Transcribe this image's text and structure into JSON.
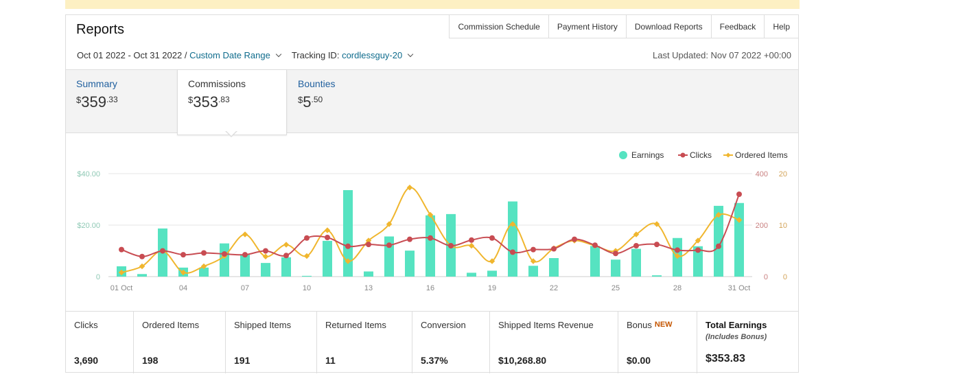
{
  "header": {
    "title": "Reports",
    "links": [
      "Commission Schedule",
      "Payment History",
      "Download Reports",
      "Feedback",
      "Help"
    ]
  },
  "filters": {
    "date_range": "Oct 01 2022 - Oct 31 2022 /",
    "date_range_link": "Custom Date Range",
    "tracking_label": "Tracking ID:",
    "tracking_id": "cordlessguy-20",
    "last_updated": "Last Updated: Nov 07 2022 +00:00"
  },
  "tabs": [
    {
      "label": "Summary",
      "currency": "$",
      "whole": "359",
      "cents": ".33"
    },
    {
      "label": "Commissions",
      "currency": "$",
      "whole": "353",
      "cents": ".83"
    },
    {
      "label": "Bounties",
      "currency": "$",
      "whole": "5",
      "cents": ".50"
    }
  ],
  "chart_data": {
    "type": "bar+line",
    "legend": [
      "Earnings",
      "Clicks",
      "Ordered Items"
    ],
    "legend_position": "top-right",
    "x": [
      "01 Oct",
      "02",
      "03",
      "04",
      "05",
      "06",
      "07",
      "08",
      "09",
      "10",
      "11",
      "12",
      "13",
      "14",
      "15",
      "16",
      "17",
      "18",
      "19",
      "20",
      "21",
      "22",
      "23",
      "24",
      "25",
      "26",
      "27",
      "28",
      "29",
      "30",
      "31 Oct"
    ],
    "x_tick_labels": [
      "01 Oct",
      "04",
      "07",
      "10",
      "13",
      "16",
      "19",
      "22",
      "25",
      "28",
      "31 Oct"
    ],
    "y_left_ticks": [
      "$40.00",
      "$20.00",
      "0"
    ],
    "y_mid_ticks": [
      "400",
      "200",
      "0"
    ],
    "y_right_ticks": [
      "20",
      "10",
      "0"
    ],
    "ylim_earnings": [
      0,
      40
    ],
    "ylim_clicks": [
      0,
      400
    ],
    "ylim_ordered": [
      0,
      20
    ],
    "colors": {
      "earnings": "#56e3c1",
      "clicks": "#c84c52",
      "ordered": "#f0b62e"
    },
    "series": [
      {
        "name": "Earnings",
        "values": [
          4.0,
          1.0,
          18.7,
          3.5,
          3.5,
          12.9,
          8.5,
          5.3,
          7.5,
          0.3,
          13.9,
          33.6,
          2.0,
          15.6,
          10.1,
          23.8,
          24.3,
          1.5,
          2.3,
          29.2,
          4.2,
          7.2,
          0,
          11.9,
          6.6,
          10.8,
          0.5,
          15.0,
          11.8,
          27.5,
          28.6
        ]
      },
      {
        "name": "Clicks",
        "values": [
          105,
          78,
          100,
          85,
          92,
          88,
          85,
          100,
          82,
          150,
          152,
          118,
          125,
          122,
          145,
          150,
          120,
          142,
          150,
          95,
          105,
          108,
          145,
          122,
          90,
          120,
          125,
          103,
          103,
          118,
          320
        ]
      },
      {
        "name": "Ordered Items",
        "values": [
          0.8,
          2.0,
          5.0,
          0.8,
          2.0,
          4.0,
          8.2,
          3.9,
          6.2,
          4.0,
          9.0,
          3.0,
          7.0,
          10.2,
          17.3,
          12.0,
          6.0,
          6.0,
          3.0,
          10.2,
          3.0,
          5.5,
          7.0,
          6.0,
          5.0,
          8.2,
          10.2,
          4.0,
          7.0,
          12.0,
          11.0
        ]
      }
    ]
  },
  "stats": [
    {
      "label": "Clicks",
      "value": "3,690"
    },
    {
      "label": "Ordered Items",
      "value": "198"
    },
    {
      "label": "Shipped Items",
      "value": "191"
    },
    {
      "label": "Returned Items",
      "value": "11"
    },
    {
      "label": "Conversion",
      "value": "5.37%"
    },
    {
      "label": "Shipped Items Revenue",
      "value": "$10,268.80"
    },
    {
      "label": "Bonus",
      "badge": "NEW",
      "value": "$0.00"
    },
    {
      "label": "Total Earnings",
      "sub": "(Includes Bonus)",
      "value": "$353.83"
    }
  ]
}
